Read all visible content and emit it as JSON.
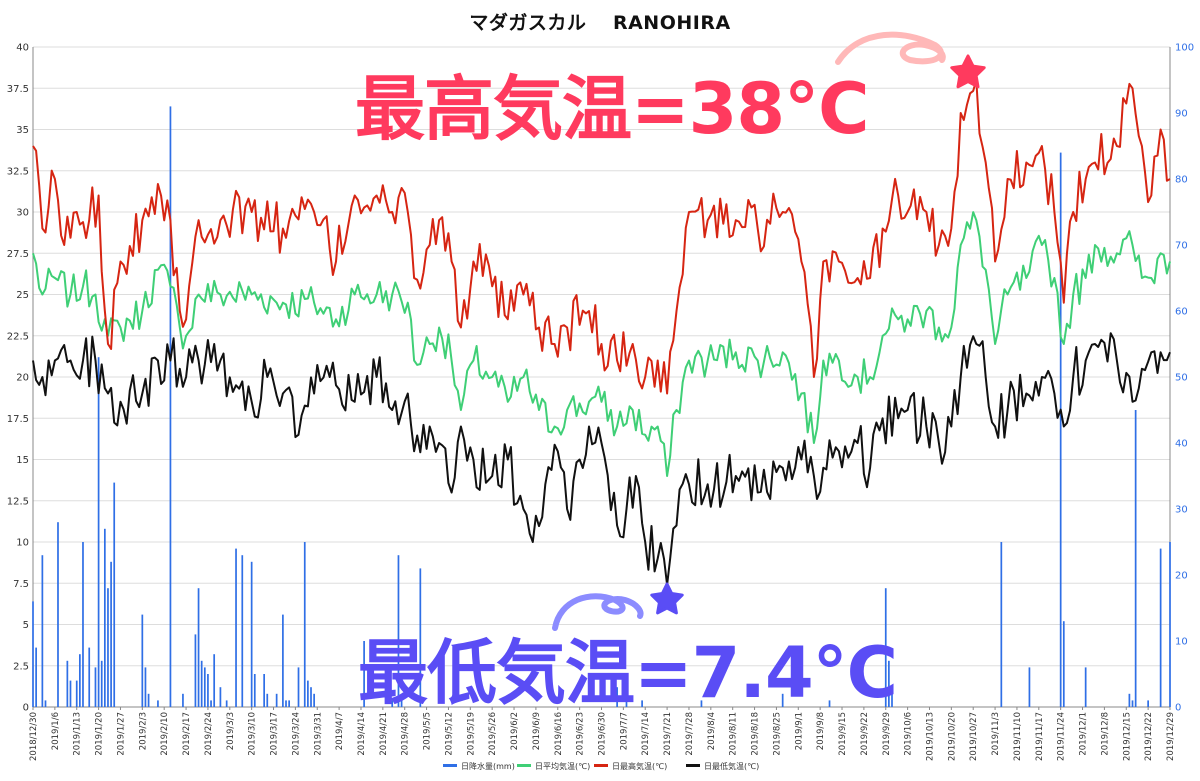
{
  "chart_data": {
    "type": "bar+line",
    "title": "マダガスカル　 RANOHIRA",
    "annotations": {
      "high": "最高気温=38°C",
      "low": "最低気温=7.4°C"
    },
    "colors": {
      "precip": "#2f6fe6",
      "avg": "#3fcf76",
      "max": "#d62512",
      "min": "#111111",
      "grid": "#dddddd",
      "left_axis": "#333333",
      "right_axis": "#2f6fe6",
      "high_accent": "#ff3a5e",
      "low_accent": "#5a4df5"
    },
    "start_date": "2018-12-30",
    "days": 365,
    "y_left": {
      "ylim": [
        0,
        40
      ],
      "ticks": [
        "0",
        "2.5",
        "5",
        "7.5",
        "10",
        "12.5",
        "15",
        "17.5",
        "20",
        "22.5",
        "25",
        "27.5",
        "30",
        "32.5",
        "35",
        "37.5",
        "40"
      ]
    },
    "y_right": {
      "ylim": [
        0,
        100
      ],
      "ticks": [
        "0",
        "10",
        "20",
        "30",
        "40",
        "50",
        "60",
        "70",
        "80",
        "90",
        "100"
      ]
    },
    "x_tick_labels": [
      "2018/12/30",
      "2019/1/6",
      "2019/1/13",
      "2019/1/20",
      "2019/1/27",
      "2019/2/3",
      "2019/2/10",
      "2019/2/17",
      "2019/2/24",
      "2019/3/3",
      "2019/3/10",
      "2019/3/17",
      "2019/3/24",
      "2019/3/31",
      "2019/4/7",
      "2019/4/14",
      "2019/4/21",
      "2019/4/28",
      "2019/5/5",
      "2019/5/12",
      "2019/5/19",
      "2019/5/26",
      "2019/6/2",
      "2019/6/9",
      "2019/6/16",
      "2019/6/23",
      "2019/6/30",
      "2019/7/7",
      "2019/7/14",
      "2019/7/21",
      "2019/7/28",
      "2019/8/4",
      "2019/8/11",
      "2019/8/18",
      "2019/8/25",
      "2019/9/1",
      "2019/9/8",
      "2019/9/15",
      "2019/9/22",
      "2019/9/29",
      "2019/10/6",
      "2019/10/13",
      "2019/10/20",
      "2019/10/27",
      "2019/11/3",
      "2019/11/10",
      "2019/11/17",
      "2019/11/24",
      "2019/12/1",
      "2019/12/8",
      "2019/12/15",
      "2019/12/22",
      "2019/12/29"
    ],
    "legend": [
      "日降水量(mm)",
      "日平均気温(℃)",
      "日最高気温(℃)",
      "日最低気温(℃)"
    ],
    "series": {
      "max_keypoints": [
        [
          0,
          34
        ],
        [
          3,
          29
        ],
        [
          7,
          32
        ],
        [
          10,
          28
        ],
        [
          14,
          30
        ],
        [
          18,
          29.5
        ],
        [
          21,
          31
        ],
        [
          24,
          22
        ],
        [
          28,
          27
        ],
        [
          35,
          29.5
        ],
        [
          40,
          31.7
        ],
        [
          44,
          29.5
        ],
        [
          47,
          24
        ],
        [
          49,
          23.5
        ],
        [
          53,
          29.5
        ],
        [
          60,
          29.5
        ],
        [
          70,
          30
        ],
        [
          80,
          29
        ],
        [
          90,
          30
        ],
        [
          97,
          27
        ],
        [
          103,
          31
        ],
        [
          110,
          31
        ],
        [
          115,
          30
        ],
        [
          120,
          30
        ],
        [
          122,
          26
        ],
        [
          127,
          28
        ],
        [
          130,
          29.5
        ],
        [
          134,
          27
        ],
        [
          137,
          23
        ],
        [
          141,
          27
        ],
        [
          147,
          25.5
        ],
        [
          152,
          23.5
        ],
        [
          157,
          25
        ],
        [
          162,
          23
        ],
        [
          167,
          22
        ],
        [
          171,
          23
        ],
        [
          178,
          24
        ],
        [
          182,
          22
        ],
        [
          187,
          21
        ],
        [
          192,
          22
        ],
        [
          196,
          20
        ],
        [
          200,
          21
        ],
        [
          203,
          19
        ],
        [
          206,
          24
        ],
        [
          210,
          30
        ],
        [
          216,
          29.5
        ],
        [
          225,
          29.5
        ],
        [
          232,
          29
        ],
        [
          240,
          30
        ],
        [
          246,
          27
        ],
        [
          250,
          20
        ],
        [
          253,
          27
        ],
        [
          258,
          27
        ],
        [
          264,
          26
        ],
        [
          268,
          26
        ],
        [
          272,
          29
        ],
        [
          277,
          31
        ],
        [
          280,
          30
        ],
        [
          286,
          30
        ],
        [
          290,
          28
        ],
        [
          294,
          29
        ],
        [
          297,
          36
        ],
        [
          302,
          38
        ],
        [
          305,
          33
        ],
        [
          308,
          27
        ],
        [
          312,
          32
        ],
        [
          318,
          33
        ],
        [
          323,
          34
        ],
        [
          327,
          30
        ],
        [
          330,
          24.5
        ],
        [
          333,
          30
        ],
        [
          337,
          32
        ],
        [
          340,
          33
        ],
        [
          347,
          34
        ],
        [
          352,
          37.5
        ],
        [
          355,
          34
        ],
        [
          358,
          31
        ],
        [
          361,
          35
        ],
        [
          364,
          32
        ]
      ],
      "avg_keypoints": [
        [
          0,
          27.5
        ],
        [
          3,
          25
        ],
        [
          7,
          26
        ],
        [
          12,
          25
        ],
        [
          16,
          25.5
        ],
        [
          20,
          25
        ],
        [
          24,
          22.5
        ],
        [
          28,
          23
        ],
        [
          35,
          24
        ],
        [
          40,
          26.5
        ],
        [
          44,
          25.5
        ],
        [
          47,
          23
        ],
        [
          49,
          22.5
        ],
        [
          53,
          25
        ],
        [
          60,
          25
        ],
        [
          70,
          25
        ],
        [
          80,
          24.5
        ],
        [
          90,
          24.5
        ],
        [
          97,
          23.5
        ],
        [
          103,
          25
        ],
        [
          110,
          25
        ],
        [
          115,
          25
        ],
        [
          120,
          24.5
        ],
        [
          122,
          21
        ],
        [
          127,
          22
        ],
        [
          130,
          23
        ],
        [
          134,
          21
        ],
        [
          137,
          18
        ],
        [
          141,
          21
        ],
        [
          147,
          20
        ],
        [
          152,
          18.5
        ],
        [
          157,
          20
        ],
        [
          162,
          18
        ],
        [
          167,
          17
        ],
        [
          171,
          18
        ],
        [
          178,
          18.5
        ],
        [
          182,
          18.5
        ],
        [
          187,
          17
        ],
        [
          192,
          18
        ],
        [
          196,
          16.5
        ],
        [
          200,
          17
        ],
        [
          203,
          14
        ],
        [
          206,
          18
        ],
        [
          210,
          21
        ],
        [
          216,
          21
        ],
        [
          225,
          21.5
        ],
        [
          232,
          21
        ],
        [
          240,
          21.5
        ],
        [
          246,
          19
        ],
        [
          250,
          16
        ],
        [
          253,
          21
        ],
        [
          258,
          21
        ],
        [
          264,
          20
        ],
        [
          268,
          20
        ],
        [
          272,
          22.5
        ],
        [
          277,
          23.5
        ],
        [
          280,
          23.5
        ],
        [
          286,
          24
        ],
        [
          290,
          23
        ],
        [
          294,
          23
        ],
        [
          297,
          28
        ],
        [
          302,
          29.5
        ],
        [
          305,
          26.5
        ],
        [
          308,
          22
        ],
        [
          312,
          25
        ],
        [
          318,
          26
        ],
        [
          323,
          28
        ],
        [
          327,
          26
        ],
        [
          330,
          22
        ],
        [
          333,
          25
        ],
        [
          337,
          26
        ],
        [
          340,
          28
        ],
        [
          347,
          27.5
        ],
        [
          352,
          28
        ],
        [
          355,
          26
        ],
        [
          358,
          26
        ],
        [
          361,
          27.5
        ],
        [
          364,
          27
        ]
      ],
      "min_keypoints": [
        [
          0,
          21
        ],
        [
          3,
          20
        ],
        [
          7,
          21
        ],
        [
          12,
          21
        ],
        [
          16,
          21
        ],
        [
          20,
          21
        ],
        [
          24,
          19
        ],
        [
          28,
          18.5
        ],
        [
          35,
          19
        ],
        [
          40,
          21
        ],
        [
          44,
          21
        ],
        [
          47,
          20.5
        ],
        [
          49,
          20
        ],
        [
          53,
          21
        ],
        [
          58,
          22
        ],
        [
          60,
          21
        ],
        [
          65,
          19.5
        ],
        [
          70,
          18.5
        ],
        [
          75,
          20
        ],
        [
          80,
          19
        ],
        [
          85,
          16.5
        ],
        [
          90,
          19
        ],
        [
          95,
          20
        ],
        [
          97,
          19.5
        ],
        [
          103,
          18.5
        ],
        [
          110,
          20
        ],
        [
          115,
          18
        ],
        [
          120,
          19
        ],
        [
          122,
          15.5
        ],
        [
          127,
          17
        ],
        [
          130,
          16
        ],
        [
          134,
          13
        ],
        [
          137,
          17
        ],
        [
          141,
          15
        ],
        [
          147,
          14
        ],
        [
          152,
          15
        ],
        [
          157,
          12
        ],
        [
          160,
          10
        ],
        [
          164,
          13.5
        ],
        [
          168,
          15.5
        ],
        [
          171,
          12
        ],
        [
          175,
          15
        ],
        [
          178,
          17
        ],
        [
          182,
          16
        ],
        [
          187,
          11
        ],
        [
          190,
          12
        ],
        [
          193,
          14
        ],
        [
          196,
          10
        ],
        [
          200,
          9
        ],
        [
          203,
          7.4
        ],
        [
          206,
          11
        ],
        [
          210,
          13.5
        ],
        [
          216,
          13.5
        ],
        [
          225,
          14
        ],
        [
          232,
          13
        ],
        [
          240,
          14.5
        ],
        [
          246,
          15
        ],
        [
          250,
          14
        ],
        [
          253,
          14.5
        ],
        [
          258,
          15.5
        ],
        [
          264,
          16
        ],
        [
          268,
          14.5
        ],
        [
          272,
          17.5
        ],
        [
          277,
          17.5
        ],
        [
          280,
          18
        ],
        [
          286,
          17
        ],
        [
          290,
          16
        ],
        [
          294,
          17
        ],
        [
          297,
          20
        ],
        [
          302,
          22
        ],
        [
          305,
          20
        ],
        [
          308,
          17
        ],
        [
          312,
          18
        ],
        [
          318,
          19
        ],
        [
          323,
          20
        ],
        [
          327,
          19
        ],
        [
          330,
          17
        ],
        [
          333,
          20
        ],
        [
          337,
          21
        ],
        [
          340,
          22
        ],
        [
          347,
          21
        ],
        [
          352,
          18.5
        ],
        [
          355,
          20.5
        ],
        [
          358,
          21.5
        ],
        [
          361,
          21.5
        ],
        [
          364,
          21.5
        ]
      ],
      "precip_bars": [
        [
          0,
          16
        ],
        [
          1,
          9
        ],
        [
          3,
          23
        ],
        [
          4,
          1
        ],
        [
          8,
          28
        ],
        [
          11,
          7
        ],
        [
          12,
          4
        ],
        [
          14,
          4
        ],
        [
          15,
          8
        ],
        [
          16,
          25
        ],
        [
          18,
          9
        ],
        [
          20,
          6
        ],
        [
          21,
          53
        ],
        [
          22,
          7
        ],
        [
          23,
          27
        ],
        [
          24,
          18
        ],
        [
          25,
          22
        ],
        [
          26,
          34
        ],
        [
          35,
          14
        ],
        [
          36,
          6
        ],
        [
          37,
          2
        ],
        [
          40,
          1
        ],
        [
          44,
          91
        ],
        [
          48,
          2
        ],
        [
          52,
          11
        ],
        [
          53,
          18
        ],
        [
          54,
          7
        ],
        [
          55,
          6
        ],
        [
          56,
          5
        ],
        [
          57,
          1
        ],
        [
          58,
          8
        ],
        [
          60,
          3
        ],
        [
          62,
          1
        ],
        [
          65,
          24
        ],
        [
          67,
          23
        ],
        [
          70,
          22
        ],
        [
          71,
          5
        ],
        [
          74,
          5
        ],
        [
          75,
          2
        ],
        [
          78,
          2
        ],
        [
          80,
          14
        ],
        [
          81,
          1
        ],
        [
          82,
          1
        ],
        [
          85,
          6
        ],
        [
          87,
          25
        ],
        [
          88,
          4
        ],
        [
          89,
          3
        ],
        [
          90,
          2
        ],
        [
          106,
          10
        ],
        [
          115,
          1
        ],
        [
          117,
          23
        ],
        [
          118,
          2
        ],
        [
          124,
          21
        ],
        [
          187,
          3
        ],
        [
          190,
          3
        ],
        [
          195,
          1
        ],
        [
          214,
          1
        ],
        [
          240,
          2
        ],
        [
          255,
          1
        ],
        [
          273,
          18
        ],
        [
          274,
          7
        ],
        [
          275,
          2
        ],
        [
          310,
          25
        ],
        [
          319,
          6
        ],
        [
          329,
          84
        ],
        [
          330,
          13
        ],
        [
          337,
          6
        ],
        [
          351,
          2
        ],
        [
          352,
          1
        ],
        [
          353,
          45
        ],
        [
          357,
          1
        ],
        [
          361,
          24
        ],
        [
          364,
          25
        ]
      ]
    }
  }
}
